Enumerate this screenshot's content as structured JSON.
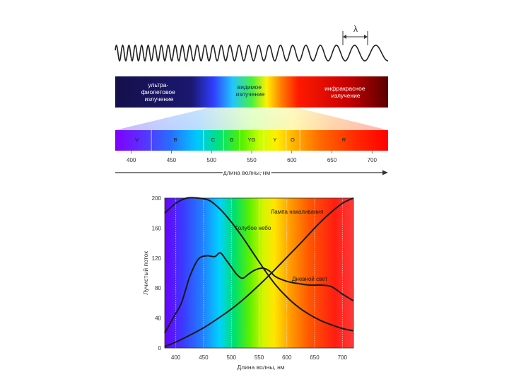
{
  "spectrum_diagram": {
    "lambda_symbol": "λ",
    "band_labels": {
      "uv": [
        "ультра-",
        "фиолетовое",
        "излучение"
      ],
      "visible": [
        "видимое",
        "излучение"
      ],
      "ir": [
        "инфракрасное",
        "излучение"
      ]
    },
    "color_letters": [
      "V",
      "B",
      "C",
      "G",
      "YG",
      "Y",
      "O",
      "R"
    ],
    "wavelength_ticks": [
      "400",
      "450",
      "500",
      "550",
      "600",
      "650",
      "700"
    ],
    "axis_label": "длина волны, нм"
  },
  "chart_data": {
    "type": "line",
    "xlabel": "Длина волны, нм",
    "ylabel": "Лучистый поток",
    "xlim": [
      380,
      720
    ],
    "ylim": [
      0,
      200
    ],
    "x_ticks": [
      "400",
      "450",
      "500",
      "550",
      "600",
      "650",
      "700"
    ],
    "y_ticks": [
      "0",
      "40",
      "80",
      "120",
      "160",
      "200"
    ],
    "background": "visible spectrum gradient",
    "series": [
      {
        "name": "Лампа накаливания",
        "x": [
          380,
          400,
          425,
          450,
          475,
          500,
          525,
          550,
          575,
          600,
          625,
          650,
          675,
          700,
          720
        ],
        "values": [
          2,
          8,
          17,
          27,
          39,
          52,
          67,
          84,
          102,
          121,
          140,
          160,
          178,
          193,
          200
        ]
      },
      {
        "name": "Голубое небо",
        "x": [
          380,
          400,
          420,
          440,
          460,
          480,
          500,
          520,
          540,
          560,
          580,
          600,
          620,
          640,
          660,
          680,
          700,
          720
        ],
        "values": [
          180,
          193,
          200,
          200,
          197,
          185,
          168,
          148,
          126,
          104,
          84,
          68,
          55,
          45,
          37,
          31,
          26,
          23
        ]
      },
      {
        "name": "Дневной свет",
        "x": [
          380,
          395,
          410,
          425,
          440,
          455,
          470,
          480,
          490,
          500,
          510,
          520,
          530,
          540,
          550,
          560,
          570,
          580,
          600,
          620,
          640,
          660,
          680,
          700,
          720
        ],
        "values": [
          20,
          40,
          60,
          95,
          118,
          123,
          122,
          127,
          118,
          108,
          98,
          93,
          98,
          103,
          106,
          106,
          102,
          95,
          89,
          86,
          84,
          84,
          82,
          72,
          63
        ]
      }
    ]
  }
}
